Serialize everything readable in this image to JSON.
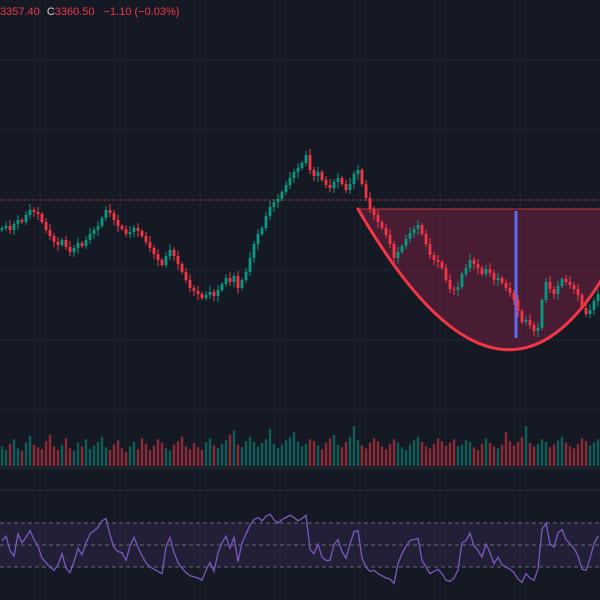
{
  "legend": {
    "low_value": "3357.40",
    "close_label": "C",
    "close_value": "3360.50",
    "change": "−1.10 (−0.03%)"
  },
  "colors": {
    "background": "#151924",
    "grid": "#1f2331",
    "up": "#089981",
    "down": "#f23645",
    "pattern_curve": "#f23645",
    "pattern_fill": "#5a1f3a",
    "pattern_marker": "#5b6cf0",
    "rsi_line": "#7e57c2",
    "rsi_band": "#7e57c2",
    "level_line": "#f23645"
  },
  "chart_data": [
    {
      "type": "candlestick",
      "name": "price",
      "x_count": 150,
      "close": [
        3412,
        3414,
        3410,
        3416,
        3420,
        3418,
        3425,
        3430,
        3428,
        3426,
        3418,
        3410,
        3404,
        3398,
        3395,
        3400,
        3393,
        3388,
        3392,
        3397,
        3394,
        3400,
        3406,
        3410,
        3414,
        3422,
        3430,
        3427,
        3420,
        3414,
        3411,
        3406,
        3408,
        3412,
        3409,
        3404,
        3398,
        3392,
        3386,
        3380,
        3375,
        3384,
        3390,
        3384,
        3376,
        3368,
        3360,
        3352,
        3349,
        3346,
        3342,
        3345,
        3348,
        3344,
        3350,
        3356,
        3362,
        3358,
        3364,
        3352,
        3360,
        3368,
        3382,
        3396,
        3406,
        3412,
        3424,
        3433,
        3438,
        3441,
        3448,
        3455,
        3462,
        3468,
        3472,
        3477,
        3485,
        3470,
        3464,
        3468,
        3460,
        3455,
        3452,
        3458,
        3462,
        3456,
        3450,
        3456,
        3466,
        3470,
        3456,
        3442,
        3431,
        3425,
        3418,
        3412,
        3405,
        3396,
        3382,
        3388,
        3394,
        3401,
        3407,
        3411,
        3415,
        3406,
        3396,
        3385,
        3380,
        3378,
        3372,
        3360,
        3351,
        3350,
        3353,
        3366,
        3372,
        3380,
        3376,
        3372,
        3366,
        3371,
        3367,
        3360,
        3362,
        3357,
        3352,
        3347,
        3340,
        3329,
        3318,
        3320,
        3315,
        3309,
        3312,
        3340,
        3358,
        3351,
        3346,
        3354,
        3361,
        3358,
        3355,
        3351,
        3345,
        3332,
        3326,
        3330,
        3339,
        3346
      ],
      "volume": [
        22,
        18,
        25,
        30,
        20,
        17,
        26,
        34,
        24,
        21,
        19,
        28,
        35,
        22,
        18,
        24,
        31,
        20,
        17,
        26,
        22,
        30,
        19,
        23,
        27,
        33,
        21,
        18,
        24,
        29,
        20,
        16,
        22,
        27,
        19,
        31,
        25,
        18,
        23,
        30,
        26,
        20,
        17,
        24,
        28,
        33,
        22,
        19,
        26,
        21,
        18,
        27,
        31,
        23,
        20,
        25,
        29,
        35,
        40,
        24,
        21,
        28,
        33,
        27,
        22,
        26,
        30,
        42,
        25,
        20,
        24,
        29,
        32,
        38,
        27,
        22,
        25,
        30,
        28,
        23,
        19,
        26,
        31,
        35,
        24,
        21,
        27,
        33,
        45,
        29,
        23,
        20,
        26,
        31,
        28,
        22,
        19,
        25,
        30,
        26,
        21,
        18,
        24,
        29,
        33,
        27,
        22,
        20,
        25,
        31,
        28,
        23,
        26,
        30,
        22,
        24,
        29,
        27,
        21,
        18,
        25,
        31,
        26,
        22,
        20,
        24,
        38,
        28,
        23,
        27,
        32,
        45,
        26,
        22,
        25,
        30,
        27,
        21,
        24,
        29,
        33,
        26,
        22,
        20,
        25,
        31,
        28,
        23,
        26,
        30
      ]
    },
    {
      "type": "line",
      "name": "rsi",
      "bands": [
        70,
        50,
        30
      ],
      "values": [
        54,
        58,
        45,
        40,
        60,
        52,
        57,
        63,
        55,
        49,
        38,
        34,
        30,
        27,
        32,
        42,
        29,
        25,
        35,
        47,
        41,
        52,
        60,
        63,
        66,
        72,
        74,
        59,
        48,
        44,
        43,
        36,
        49,
        57,
        48,
        40,
        34,
        30,
        28,
        26,
        24,
        48,
        57,
        43,
        34,
        29,
        25,
        22,
        21,
        20,
        18,
        27,
        34,
        26,
        43,
        52,
        58,
        47,
        57,
        35,
        52,
        60,
        68,
        73,
        75,
        72,
        76,
        78,
        73,
        70,
        73,
        75,
        77,
        75,
        72,
        74,
        77,
        46,
        42,
        51,
        39,
        36,
        36,
        50,
        55,
        44,
        38,
        51,
        62,
        63,
        38,
        30,
        26,
        27,
        24,
        22,
        20,
        19,
        15,
        33,
        42,
        49,
        54,
        55,
        56,
        36,
        30,
        24,
        26,
        28,
        24,
        18,
        17,
        20,
        27,
        52,
        54,
        61,
        49,
        45,
        39,
        51,
        43,
        33,
        39,
        32,
        30,
        28,
        25,
        19,
        16,
        24,
        20,
        18,
        28,
        64,
        70,
        51,
        48,
        61,
        64,
        55,
        51,
        47,
        40,
        28,
        27,
        38,
        51,
        58
      ]
    }
  ],
  "annotations": {
    "rounded_bottom": "true",
    "horizontal_level": "true"
  }
}
